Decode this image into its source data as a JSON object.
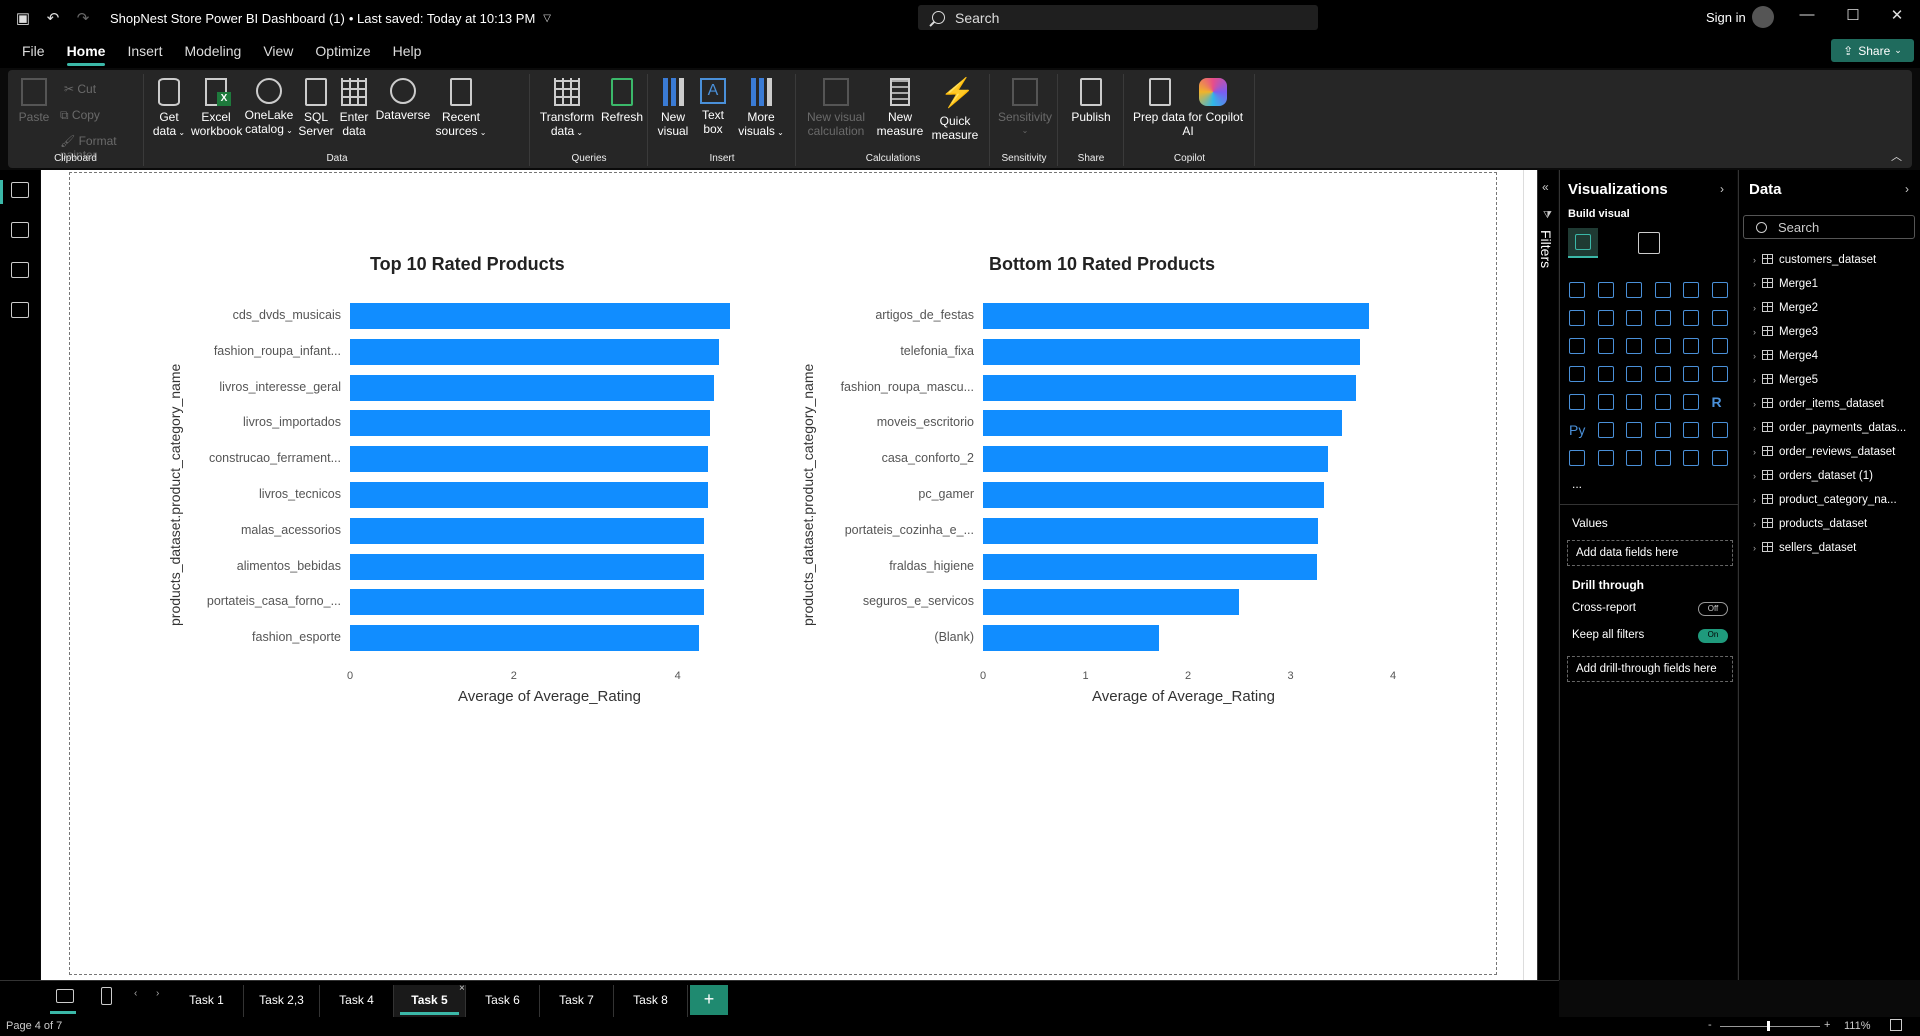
{
  "titlebar": {
    "doc_title": "ShopNest Store Power BI Dashboard (1)",
    "saved": "• Last saved: Today at 10:13 PM",
    "search_placeholder": "Search",
    "signin": "Sign in",
    "minimize": "—",
    "maximize": "☐",
    "close": "✕"
  },
  "menu": {
    "items": [
      "File",
      "Home",
      "Insert",
      "Modeling",
      "View",
      "Optimize",
      "Help"
    ],
    "active": "Home",
    "share_label": "Share"
  },
  "ribbon": {
    "groups": {
      "clipboard": "Clipboard",
      "data": "Data",
      "queries": "Queries",
      "insert": "Insert",
      "calculations": "Calculations",
      "sensitivity": "Sensitivity",
      "share": "Share",
      "copilot": "Copilot"
    },
    "paste": "Paste",
    "cut": "Cut",
    "copy": "Copy",
    "format_painter": "Format painter",
    "get_data": [
      "Get",
      "data"
    ],
    "excel": [
      "Excel",
      "workbook"
    ],
    "onelake": [
      "OneLake",
      "catalog"
    ],
    "sql": [
      "SQL",
      "Server"
    ],
    "enter_data": [
      "Enter",
      "data"
    ],
    "dataverse": "Dataverse",
    "recent": [
      "Recent",
      "sources"
    ],
    "transform": [
      "Transform",
      "data"
    ],
    "refresh": "Refresh",
    "new_visual": [
      "New",
      "visual"
    ],
    "text_box": [
      "Text",
      "box"
    ],
    "more_visuals": [
      "More",
      "visuals"
    ],
    "new_visual_calc": [
      "New visual",
      "calculation"
    ],
    "new_measure": [
      "New",
      "measure"
    ],
    "quick_measure": [
      "Quick",
      "measure"
    ],
    "sensitivity": "Sensitivity",
    "publish": "Publish",
    "prep_copilot": [
      "Prep data for Copilot",
      "AI"
    ]
  },
  "chart_data": [
    {
      "type": "bar",
      "orientation": "horizontal",
      "title": "Top 10 Rated Products",
      "xlabel": "Average of Average_Rating",
      "ylabel": "products_dataset.product_category_name",
      "categories": [
        "cds_dvds_musicais",
        "fashion_roupa_infant...",
        "livros_interesse_geral",
        "livros_importados",
        "construcao_ferrament...",
        "livros_tecnicos",
        "malas_acessorios",
        "alimentos_bebidas",
        "portateis_casa_forno_...",
        "fashion_esporte"
      ],
      "values": [
        4.64,
        4.5,
        4.45,
        4.4,
        4.37,
        4.37,
        4.32,
        4.32,
        4.32,
        4.26
      ],
      "xlim": [
        0,
        4.64
      ],
      "xticks": [
        "0",
        "2",
        "4"
      ],
      "xtick_values": [
        0,
        2,
        4
      ],
      "color": "#118dff"
    },
    {
      "type": "bar",
      "orientation": "horizontal",
      "title": "Bottom 10 Rated Products",
      "xlabel": "Average of Average_Rating",
      "ylabel": "products_dataset.product_category_name",
      "categories": [
        "artigos_de_festas",
        "telefonia_fixa",
        "fashion_roupa_mascu...",
        "moveis_escritorio",
        "casa_conforto_2",
        "pc_gamer",
        "portateis_cozinha_e_...",
        "fraldas_higiene",
        "seguros_e_servicos",
        "(Blank)"
      ],
      "values": [
        3.77,
        3.68,
        3.64,
        3.5,
        3.37,
        3.33,
        3.27,
        3.26,
        2.5,
        1.72
      ],
      "xlim": [
        0,
        4
      ],
      "xticks": [
        "0",
        "1",
        "2",
        "3",
        "4"
      ],
      "xtick_values": [
        0,
        1,
        2,
        3,
        4
      ],
      "color": "#118dff"
    }
  ],
  "filters": {
    "label": "Filters"
  },
  "visualizations": {
    "title": "Visualizations",
    "build_visual": "Build visual",
    "more": "...",
    "values_label": "Values",
    "add_data_fields": "Add data fields here",
    "drill_through": "Drill through",
    "cross_report": "Cross-report",
    "cross_report_state": "Off",
    "keep_all_filters": "Keep all filters",
    "keep_all_filters_state": "On",
    "add_drill_fields": "Add drill-through fields here",
    "py_label": "Py",
    "r_label": "R"
  },
  "data_pane": {
    "title": "Data",
    "search_placeholder": "Search",
    "tables": [
      "customers_dataset",
      "Merge1",
      "Merge2",
      "Merge3",
      "Merge4",
      "Merge5",
      "order_items_dataset",
      "order_payments_datas...",
      "order_reviews_dataset",
      "orders_dataset (1)",
      "product_category_na...",
      "products_dataset",
      "sellers_dataset"
    ]
  },
  "pages": {
    "tabs": [
      "Task 1",
      "Task 2,3",
      "Task 4",
      "Task 5",
      "Task 6",
      "Task 7",
      "Task 8"
    ],
    "active": "Task 5",
    "add": "+",
    "close": "×"
  },
  "status": {
    "page_indicator": "Page 4 of 7",
    "zoom": "111%",
    "zoom_minus": "-",
    "zoom_plus": "+"
  }
}
